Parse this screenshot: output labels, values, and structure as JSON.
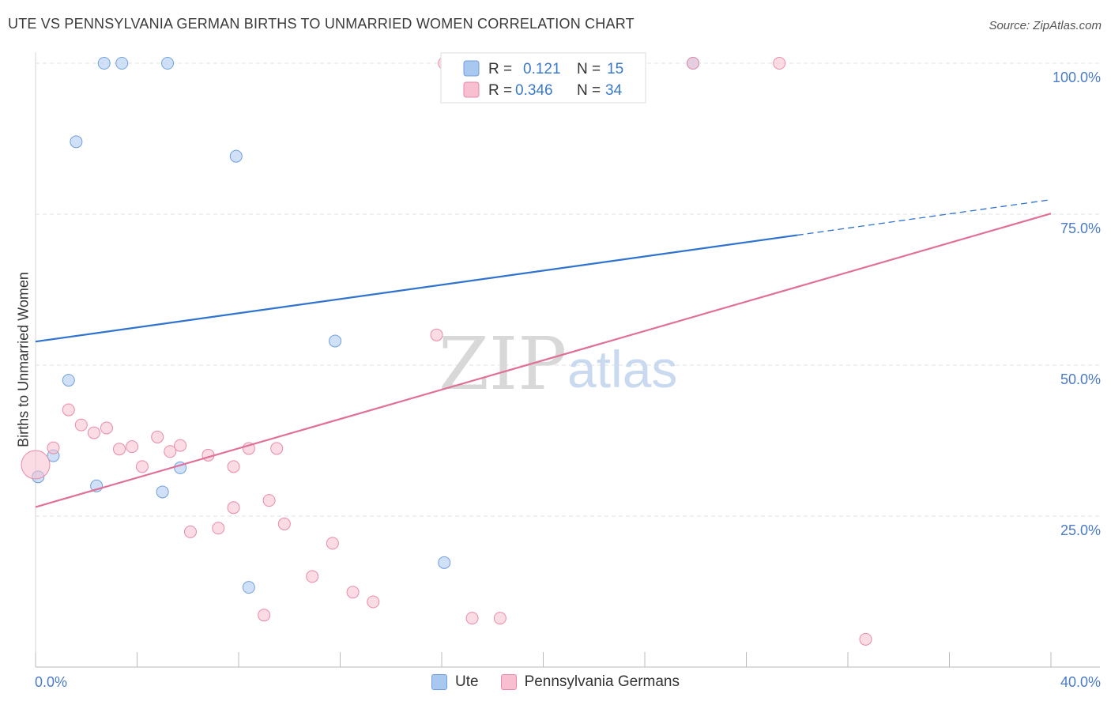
{
  "header": {
    "title": "UTE VS PENNSYLVANIA GERMAN BIRTHS TO UNMARRIED WOMEN CORRELATION CHART",
    "source": "Source: ZipAtlas.com"
  },
  "watermark": {
    "zip": "ZIP",
    "atlas": "atlas"
  },
  "legend": {
    "r_label": "R =",
    "n_label": "N =",
    "items": [
      {
        "name": "Ute",
        "r": "0.121",
        "n": "15",
        "color": "#a9c8f0",
        "stroke": "#6f9fdc"
      },
      {
        "name": "Pennsylvania Germans",
        "r": "0.346",
        "n": "34",
        "color": "#f7bfd0",
        "stroke": "#e88aa8"
      }
    ]
  },
  "chart_data": {
    "type": "scatter",
    "title": "UTE VS PENNSYLVANIA GERMAN BIRTHS TO UNMARRIED WOMEN CORRELATION CHART",
    "xlabel": "",
    "ylabel": "Births to Unmarried Women",
    "xlim": [
      0,
      40
    ],
    "ylim": [
      0,
      100
    ],
    "x_tick_labels": [
      "0.0%",
      "40.0%"
    ],
    "y_ticks": [
      25,
      50,
      75,
      100
    ],
    "y_tick_labels": [
      "25.0%",
      "50.0%",
      "75.0%",
      "100.0%"
    ],
    "grid": true,
    "series": [
      {
        "name": "Ute",
        "color": "#a9c8f0",
        "stroke": "#6f9fdc",
        "line_color": "#2f72d0",
        "trend": {
          "x0": 0,
          "y0": 53.9,
          "x1": 40,
          "y1": 77.4,
          "solid_until_x": 30
        },
        "points": [
          [
            2.7,
            100
          ],
          [
            3.4,
            100
          ],
          [
            5.2,
            100
          ],
          [
            25.9,
            100
          ],
          [
            1.6,
            87
          ],
          [
            7.9,
            84.6
          ],
          [
            11.8,
            54
          ],
          [
            1.3,
            47.5
          ],
          [
            0.7,
            35
          ],
          [
            0.1,
            31.5
          ],
          [
            2.4,
            30
          ],
          [
            5.0,
            29
          ],
          [
            5.7,
            33
          ],
          [
            16.1,
            17.3
          ],
          [
            8.4,
            13.2
          ]
        ]
      },
      {
        "name": "Pennsylvania Germans",
        "color": "#f7bfd0",
        "stroke": "#e88aa8",
        "line_color": "#e07099",
        "trend": {
          "x0": 0,
          "y0": 26.5,
          "x1": 40,
          "y1": 75.1
        },
        "points": [
          [
            16.1,
            100
          ],
          [
            22.0,
            100
          ],
          [
            25.9,
            100
          ],
          [
            29.3,
            100
          ],
          [
            15.8,
            55
          ],
          [
            1.3,
            42.6
          ],
          [
            1.8,
            40.1
          ],
          [
            2.3,
            38.8
          ],
          [
            2.8,
            39.6
          ],
          [
            0.7,
            36.3
          ],
          [
            3.3,
            36.1
          ],
          [
            3.8,
            36.5
          ],
          [
            4.2,
            33.2
          ],
          [
            4.8,
            38.1
          ],
          [
            5.3,
            35.7
          ],
          [
            5.7,
            36.7
          ],
          [
            6.8,
            35.1
          ],
          [
            7.8,
            33.2
          ],
          [
            8.4,
            36.2
          ],
          [
            7.8,
            26.4
          ],
          [
            9.2,
            27.6
          ],
          [
            9.8,
            23.7
          ],
          [
            6.1,
            22.4
          ],
          [
            7.2,
            23
          ],
          [
            11.7,
            20.5
          ],
          [
            10.9,
            15
          ],
          [
            12.5,
            12.4
          ],
          [
            13.3,
            10.8
          ],
          [
            9.0,
            8.6
          ],
          [
            17.2,
            8.1
          ],
          [
            18.3,
            8.1
          ],
          [
            32.7,
            4.6
          ],
          [
            0.0,
            33.5
          ],
          [
            9.5,
            36.2
          ]
        ]
      }
    ]
  }
}
